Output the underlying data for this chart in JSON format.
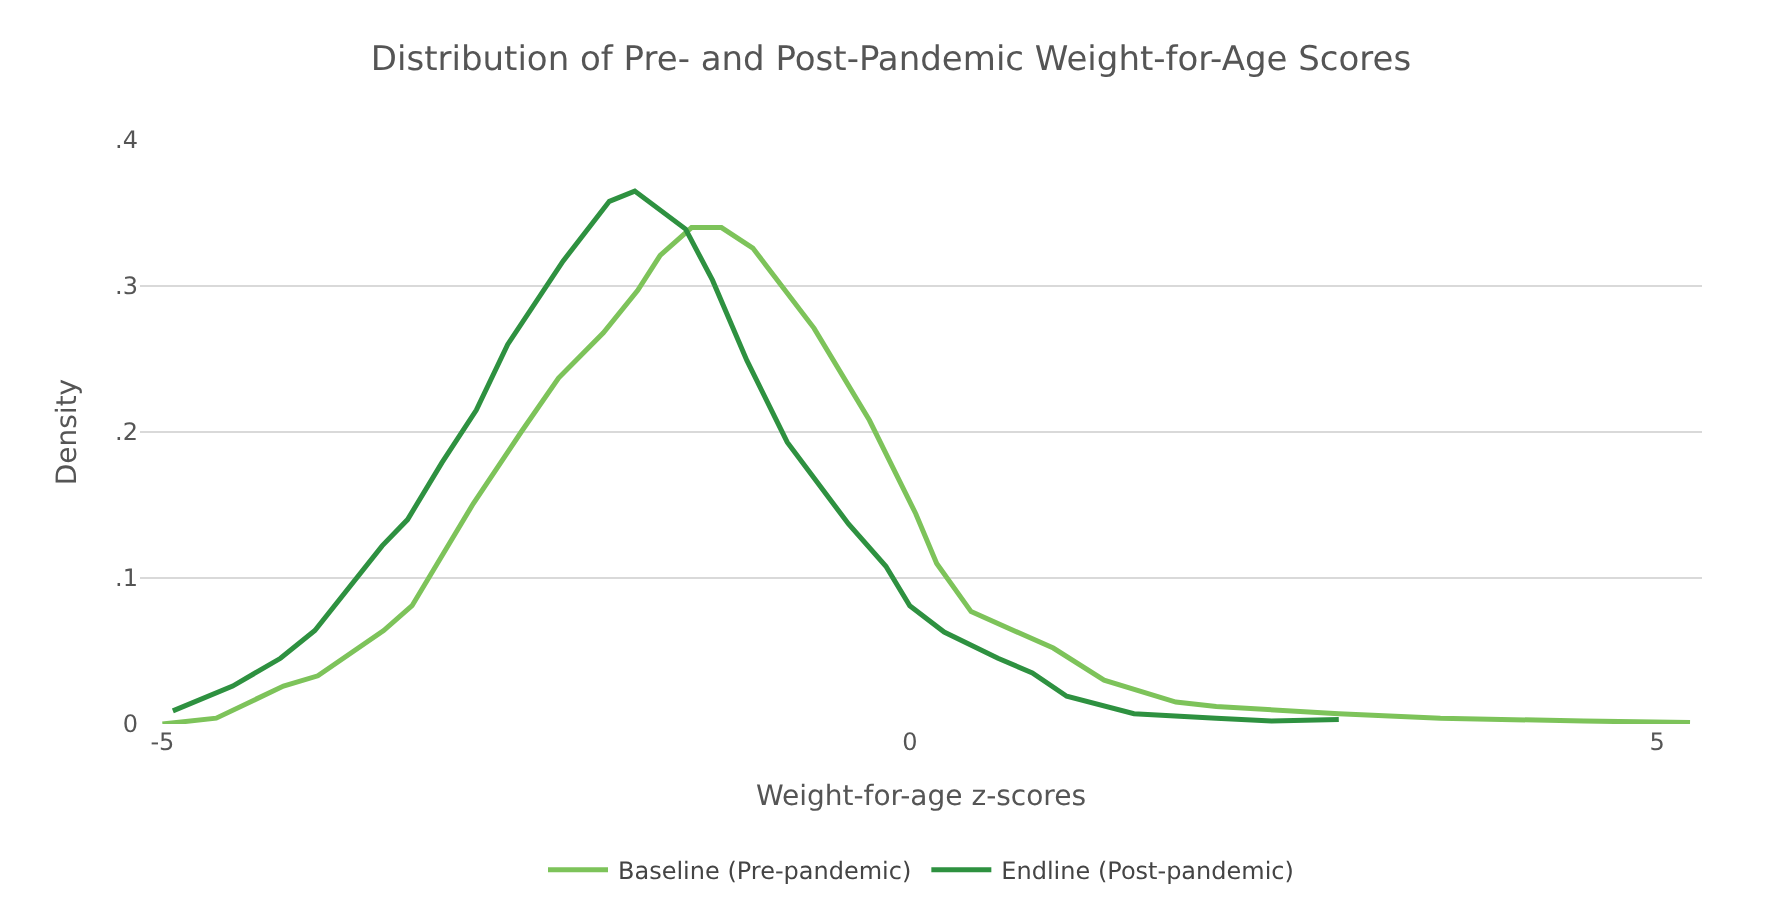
{
  "chart_data": {
    "type": "line",
    "title": "Distribution of Pre- and Post-Pandemic Weight-for-Age Scores",
    "xlabel": "Weight-for-age z-scores",
    "ylabel": "Density",
    "xlim": [
      -5.15,
      5.3
    ],
    "xticks": [
      -5,
      0,
      5
    ],
    "ylim": [
      0,
      0.4
    ],
    "yticks": [
      {
        "value": 0,
        "label": "0"
      },
      {
        "value": 0.1,
        "label": ".1"
      },
      {
        "value": 0.2,
        "label": ".2"
      },
      {
        "value": 0.3,
        "label": ".3"
      },
      {
        "value": 0.4,
        "label": ".4"
      }
    ],
    "grid": "y",
    "legend": "bottom",
    "marker": "none",
    "line_style": "solid",
    "series": [
      {
        "name": "Baseline (Pre-pandemic)",
        "color": "#7dc35a",
        "x": [
          -5.0,
          -4.64,
          -4.19,
          -3.96,
          -3.52,
          -3.33,
          -2.92,
          -2.6,
          -2.35,
          -2.05,
          -1.82,
          -1.67,
          -1.46,
          -1.26,
          -1.05,
          -0.64,
          -0.27,
          0.04,
          0.18,
          0.41,
          0.96,
          1.3,
          1.78,
          2.05,
          2.87,
          3.55,
          4.51,
          5.22
        ],
        "values": [
          0.0,
          0.004,
          0.026,
          0.033,
          0.064,
          0.081,
          0.151,
          0.2,
          0.237,
          0.268,
          0.297,
          0.321,
          0.34,
          0.34,
          0.326,
          0.271,
          0.208,
          0.144,
          0.11,
          0.077,
          0.052,
          0.03,
          0.015,
          0.012,
          0.007,
          0.004,
          0.002,
          0.001
        ]
      },
      {
        "name": "Endline (Post-pandemic)",
        "color": "#2e9140",
        "x": [
          -4.93,
          -4.53,
          -4.21,
          -3.98,
          -3.53,
          -3.36,
          -3.13,
          -2.9,
          -2.69,
          -2.32,
          -2.01,
          -1.84,
          -1.5,
          -1.32,
          -1.09,
          -0.82,
          -0.41,
          -0.16,
          0.0,
          0.23,
          0.59,
          0.82,
          1.05,
          1.5,
          2.05,
          2.42,
          2.87
        ],
        "values": [
          0.009,
          0.026,
          0.045,
          0.064,
          0.122,
          0.14,
          0.179,
          0.215,
          0.26,
          0.317,
          0.358,
          0.365,
          0.339,
          0.304,
          0.249,
          0.193,
          0.137,
          0.108,
          0.081,
          0.063,
          0.045,
          0.035,
          0.019,
          0.007,
          0.004,
          0.002,
          0.003
        ]
      }
    ]
  }
}
